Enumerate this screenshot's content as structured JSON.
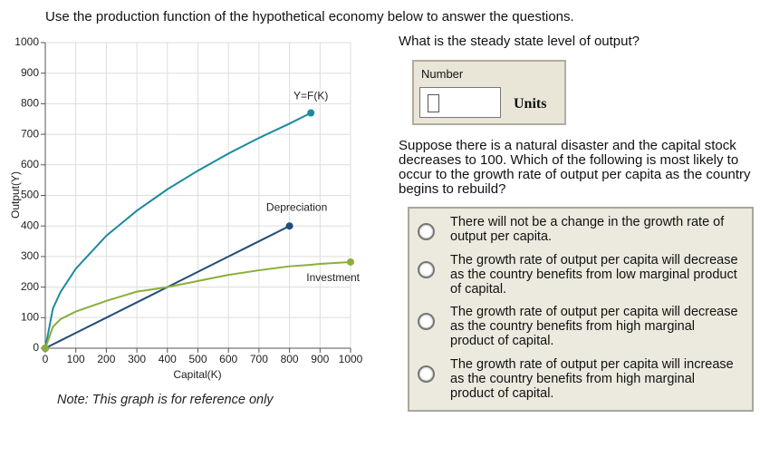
{
  "header": {
    "instruction": "Use the production function of the hypothetical economy below to answer the questions."
  },
  "chart_data": {
    "type": "line",
    "x_label": "Capital(K)",
    "y_label": "Output(Y)",
    "note": "Note: This graph is for reference only",
    "x": [
      0,
      25,
      50,
      100,
      200,
      300,
      400,
      500,
      600,
      700,
      800,
      870,
      900,
      1000
    ],
    "series": [
      {
        "name": "Y=F(K)",
        "color": "#1b8a9d",
        "values": [
          0,
          130,
          184,
          260,
          368,
          450,
          520,
          581,
          637,
          688,
          735,
          770,
          null,
          null
        ]
      },
      {
        "name": "Depreciation",
        "color": "#1f4e7a",
        "values": [
          0,
          12.5,
          25,
          50,
          100,
          150,
          200,
          250,
          300,
          350,
          400,
          null,
          null,
          null
        ]
      },
      {
        "name": "Investment",
        "color": "#8aae3c",
        "values": [
          0,
          70,
          95,
          120,
          155,
          185,
          200,
          220,
          240,
          255,
          268,
          273,
          276,
          282
        ]
      }
    ],
    "xlim": [
      0,
      1000
    ],
    "ylim": [
      0,
      1000
    ],
    "xticks": [
      0,
      100,
      200,
      300,
      400,
      500,
      600,
      700,
      800,
      900,
      1000
    ],
    "yticks": [
      0,
      100,
      200,
      300,
      400,
      500,
      600,
      700,
      800,
      900,
      1000
    ],
    "grid": true
  },
  "questions": [
    {
      "text": "What is the steady state level of output?",
      "input_label": "Number",
      "unit": "Units"
    },
    {
      "text": "Suppose there is a natural disaster and the capital stock decreases to 100. Which of the following is most likely to occur to the growth rate of output per capita as the country begins to rebuild?",
      "options": [
        "There will not be a change in the growth rate of output per capita.",
        "The growth rate of output per capita will decrease as the country benefits from low marginal product of capital.",
        "The growth rate of output per capita will decrease as the country benefits from high marginal product of capital.",
        "The growth rate of output per capita will increase as the country benefits from high marginal product of capital."
      ]
    }
  ]
}
